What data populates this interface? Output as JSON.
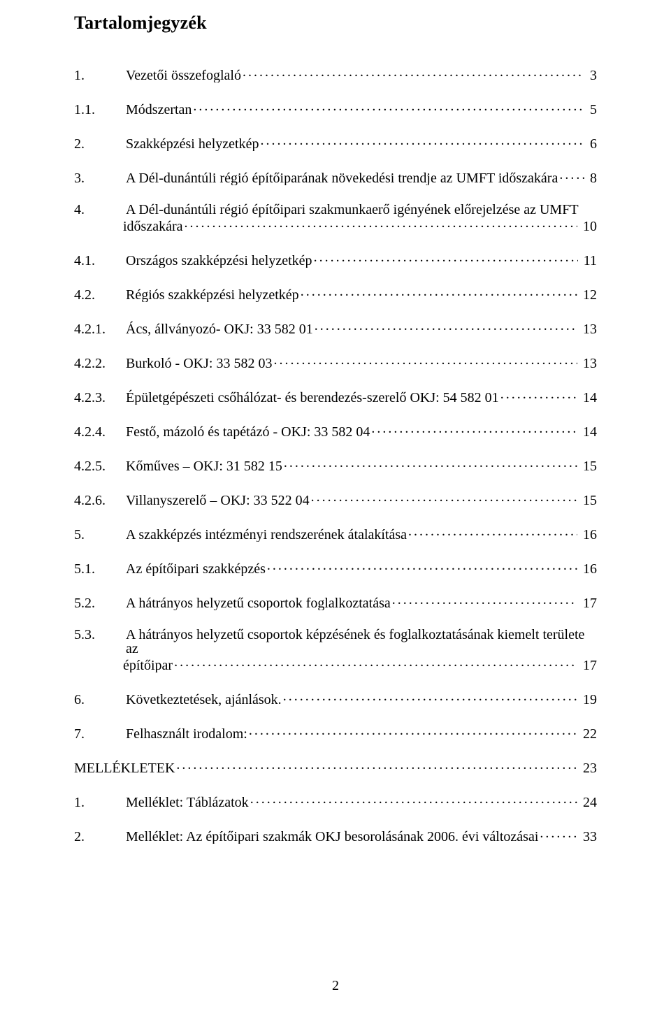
{
  "title": "Tartalomjegyzék",
  "page_number": "2",
  "entries": [
    {
      "num": "1.",
      "text": "Vezetői összefoglaló",
      "page": "3"
    },
    {
      "num": "1.1.",
      "text": "Módszertan",
      "page": "5"
    },
    {
      "num": "2.",
      "text": "Szakképzési helyzetkép",
      "page": "6"
    },
    {
      "num": "3.",
      "text": "A Dél-dunántúli régió építőiparának növekedési trendje az UMFT időszakára",
      "page": "8"
    },
    {
      "num": "4.",
      "text": "A Dél-dunántúli régió építőipari szakmunkaerő igényének előrejelzése az UMFT",
      "text2": "időszakára",
      "page": "10",
      "wrap": true
    },
    {
      "num": "4.1.",
      "text": "Országos szakképzési helyzetkép",
      "page": "11"
    },
    {
      "num": "4.2.",
      "text": "Régiós szakképzési helyzetkép",
      "page": "12"
    },
    {
      "num": "4.2.1.",
      "text": "Ács, állványozó- OKJ: 33 582 01",
      "page": "13"
    },
    {
      "num": "4.2.2.",
      "text": "Burkoló - OKJ: 33 582 03",
      "page": "13"
    },
    {
      "num": "4.2.3.",
      "text": "Épületgépészeti csőhálózat- és berendezés-szerelő OKJ: 54 582 01",
      "page": "14"
    },
    {
      "num": "4.2.4.",
      "text": "Festő, mázoló és tapétázó - OKJ: 33 582 04",
      "page": "14"
    },
    {
      "num": "4.2.5.",
      "text": "Kőműves – OKJ: 31 582 15",
      "page": "15"
    },
    {
      "num": "4.2.6.",
      "text": "Villanyszerelő – OKJ: 33 522 04",
      "page": "15"
    },
    {
      "num": "5.",
      "text": "A szakképzés intézményi rendszerének átalakítása",
      "page": "16"
    },
    {
      "num": "5.1.",
      "text": "Az építőipari szakképzés",
      "page": "16"
    },
    {
      "num": "5.2.",
      "text": "A hátrányos helyzetű csoportok foglalkoztatása",
      "page": "17"
    },
    {
      "num": "5.3.",
      "text": "A hátrányos helyzetű csoportok képzésének és foglalkoztatásának kiemelt területe az",
      "text2": "építőipar",
      "page": "17",
      "wrap": true
    },
    {
      "num": "6.",
      "text": "Következtetések, ajánlások.",
      "page": "19"
    },
    {
      "num": "7.",
      "text": "Felhasznált irodalom:",
      "page": "22"
    },
    {
      "num": "",
      "text": "MELLÉKLETEK",
      "page": "23",
      "noindent": true
    },
    {
      "num": "1.",
      "text": "Melléklet: Táblázatok",
      "page": "24"
    },
    {
      "num": "2.",
      "text": "Melléklet: Az építőipari szakmák OKJ besorolásának 2006. évi változásai",
      "page": "33"
    }
  ]
}
